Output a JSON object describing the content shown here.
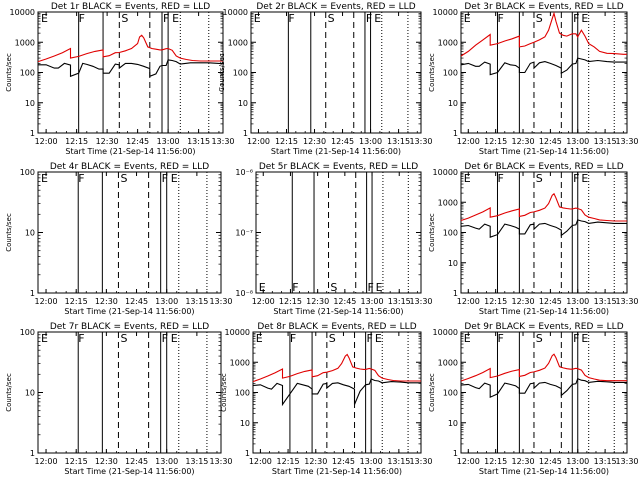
{
  "figure": {
    "background": "#ffffff",
    "events_color": "#000000",
    "lld_color": "#e00000"
  },
  "chart_data": [
    {
      "type": "line",
      "title": "Det 1r BLACK = Events, RED = LLD",
      "xlabel": "Start Time (21-Sep-14 11:56:00)",
      "ylabel": "Counts/sec",
      "x_ticks": [
        "12:00",
        "12:15",
        "12:30",
        "12:45",
        "13:00",
        "13:15",
        "13:30"
      ],
      "y_scale": "log",
      "ylim": [
        1,
        10000
      ],
      "y_ticks": [
        "1",
        "10",
        "100",
        "1000",
        "10000"
      ],
      "markers": [
        "E",
        "F",
        "S",
        "F",
        "E"
      ],
      "has_data": true,
      "series": [
        {
          "role": "events",
          "x": [
            0,
            4,
            8,
            10,
            13,
            16,
            16,
            20,
            22,
            24,
            27,
            30,
            32,
            32,
            35,
            38,
            40,
            40,
            43,
            46,
            49,
            52,
            55,
            55,
            58,
            60,
            61,
            63,
            64,
            66,
            68,
            70,
            75,
            80,
            84,
            89,
            91
          ],
          "y": [
            180,
            180,
            140,
            140,
            200,
            175,
            75,
            95,
            200,
            185,
            160,
            130,
            130,
            95,
            95,
            190,
            180,
            140,
            200,
            200,
            185,
            160,
            135,
            75,
            90,
            160,
            170,
            170,
            260,
            250,
            230,
            190,
            210,
            210,
            210,
            200,
            200
          ]
        },
        {
          "role": "lld",
          "x": [
            0,
            4,
            8,
            12,
            16,
            16,
            20,
            24,
            28,
            32,
            32,
            35,
            38,
            40,
            43,
            46,
            49,
            50,
            51,
            52,
            54,
            56,
            58,
            60,
            61,
            63,
            64,
            66,
            68,
            70,
            73,
            76,
            80,
            84,
            89,
            91
          ],
          "y": [
            230,
            280,
            350,
            450,
            620,
            300,
            340,
            420,
            500,
            560,
            330,
            360,
            450,
            460,
            520,
            620,
            900,
            1500,
            1700,
            1400,
            700,
            620,
            590,
            560,
            560,
            610,
            620,
            540,
            350,
            300,
            270,
            250,
            240,
            240,
            240,
            240
          ]
        }
      ]
    },
    {
      "type": "line",
      "title": "Det 2r BLACK = Events, RED = LLD",
      "xlabel": "Start Time (21-Sep-14 11:56:00)",
      "ylabel": "Counts/sec",
      "x_ticks": [
        "12:00",
        "12:15",
        "12:30",
        "12:45",
        "13:00",
        "13:15",
        "13:30"
      ],
      "y_scale": "log",
      "ylim": [
        1,
        10000
      ],
      "y_ticks": [
        "1",
        "10",
        "100",
        "1000",
        "10000"
      ],
      "markers": [
        "E",
        "F",
        "S",
        "F",
        "E"
      ],
      "has_data": false,
      "series": []
    },
    {
      "type": "line",
      "title": "Det 3r BLACK = Events, RED = LLD",
      "xlabel": "Start Time (21-Sep-14 11:56:00)",
      "ylabel": "Counts/sec",
      "x_ticks": [
        "12:00",
        "12:15",
        "12:30",
        "12:45",
        "13:00",
        "13:15",
        "13:30"
      ],
      "y_scale": "log",
      "ylim": [
        1,
        10000
      ],
      "y_ticks": [
        "1",
        "10",
        "100",
        "1000",
        "10000"
      ],
      "markers": [
        "E",
        "F",
        "S",
        "F",
        "E"
      ],
      "has_data": true,
      "series": [
        {
          "role": "events",
          "x": [
            0,
            4,
            8,
            10,
            13,
            16,
            16,
            20,
            24,
            27,
            30,
            32,
            32,
            35,
            38,
            40,
            40,
            43,
            46,
            49,
            52,
            55,
            55,
            58,
            61,
            63,
            64,
            66,
            68,
            70,
            75,
            80,
            84,
            89,
            91
          ],
          "y": [
            180,
            200,
            160,
            160,
            220,
            190,
            85,
            100,
            210,
            180,
            170,
            140,
            100,
            100,
            200,
            220,
            140,
            210,
            230,
            200,
            170,
            140,
            95,
            120,
            190,
            200,
            300,
            280,
            260,
            230,
            250,
            230,
            220,
            220,
            220
          ]
        },
        {
          "role": "lld",
          "x": [
            0,
            4,
            8,
            12,
            16,
            16,
            20,
            24,
            28,
            32,
            32,
            35,
            38,
            40,
            43,
            46,
            48,
            50,
            51,
            52,
            54,
            56,
            58,
            60,
            61,
            63,
            64,
            66,
            68,
            70,
            73,
            76,
            80,
            84,
            89,
            91
          ],
          "y": [
            350,
            500,
            800,
            1200,
            1800,
            800,
            900,
            1100,
            1300,
            1600,
            700,
            750,
            900,
            1000,
            1200,
            1500,
            2500,
            6000,
            9000,
            5000,
            2000,
            1700,
            1600,
            1800,
            1900,
            1900,
            1500,
            2500,
            1600,
            900,
            700,
            500,
            430,
            420,
            400,
            400
          ]
        }
      ]
    },
    {
      "type": "line",
      "title": "Det 4r BLACK = Events, RED = LLD",
      "xlabel": "Start Time (21-Sep-14 11:56:00)",
      "ylabel": "Counts/sec",
      "x_ticks": [
        "12:00",
        "12:15",
        "12:30",
        "12:45",
        "13:00",
        "13:15",
        "13:30"
      ],
      "y_scale": "log",
      "ylim": [
        1,
        100
      ],
      "y_ticks": [
        "1",
        "10",
        "100"
      ],
      "markers": [
        "E",
        "F",
        "S",
        "F",
        "E"
      ],
      "has_data": false,
      "series": []
    },
    {
      "type": "line",
      "title": "Det 5r BLACK = Events, RED = LLD",
      "xlabel": "Start Time (21-Sep-14 11:56:00)",
      "ylabel": "",
      "x_ticks": [
        "12:00",
        "12:15",
        "12:30",
        "12:45",
        "13:00",
        "13:15",
        "13:30"
      ],
      "y_scale": "log",
      "ylim": [
        1e-08,
        1e-06
      ],
      "y_ticks": [
        "10⁻⁸",
        "10⁻⁷",
        "10⁻⁶"
      ],
      "y_ticks_minor": [
        "10⁻⁸",
        "10⁻⁷",
        "10⁻⁶"
      ],
      "markers": [
        "E",
        "F",
        "S",
        "F",
        "E"
      ],
      "has_data": false,
      "series": []
    },
    {
      "type": "line",
      "title": "Det 6r BLACK = Events, RED = LLD",
      "xlabel": "Start Time (21-Sep-14 11:56:00)",
      "ylabel": "Counts/sec",
      "x_ticks": [
        "12:00",
        "12:15",
        "12:30",
        "12:45",
        "13:00",
        "13:15",
        "13:30"
      ],
      "y_scale": "log",
      "ylim": [
        1,
        10000
      ],
      "y_ticks": [
        "1",
        "10",
        "100",
        "1000",
        "10000"
      ],
      "markers": [
        "E",
        "F",
        "S",
        "F",
        "E"
      ],
      "has_data": true,
      "series": [
        {
          "role": "events",
          "x": [
            0,
            4,
            8,
            10,
            13,
            16,
            16,
            20,
            24,
            27,
            30,
            32,
            32,
            35,
            38,
            40,
            40,
            43,
            46,
            49,
            52,
            55,
            55,
            58,
            61,
            63,
            64,
            66,
            68,
            70,
            75,
            80,
            84,
            89,
            91
          ],
          "y": [
            160,
            170,
            140,
            130,
            190,
            160,
            70,
            85,
            190,
            170,
            150,
            130,
            90,
            90,
            180,
            190,
            130,
            190,
            200,
            170,
            150,
            120,
            80,
            110,
            170,
            180,
            260,
            240,
            230,
            200,
            220,
            210,
            200,
            200,
            200
          ]
        },
        {
          "role": "lld",
          "x": [
            0,
            4,
            8,
            12,
            16,
            16,
            20,
            24,
            28,
            32,
            32,
            35,
            38,
            40,
            43,
            46,
            48,
            50,
            51,
            52,
            54,
            56,
            58,
            60,
            61,
            63,
            64,
            66,
            68,
            70,
            73,
            76,
            80,
            84,
            89,
            91
          ],
          "y": [
            250,
            300,
            380,
            480,
            650,
            320,
            360,
            440,
            520,
            600,
            340,
            370,
            460,
            480,
            540,
            640,
            900,
            1700,
            1900,
            1400,
            700,
            650,
            620,
            600,
            600,
            640,
            620,
            560,
            380,
            320,
            290,
            260,
            250,
            240,
            240,
            240
          ]
        }
      ]
    },
    {
      "type": "line",
      "title": "Det 7r BLACK = Events, RED = LLD",
      "xlabel": "Start Time (21-Sep-14 11:56:00)",
      "ylabel": "Counts/sec",
      "x_ticks": [
        "12:00",
        "12:15",
        "12:30",
        "12:45",
        "13:00",
        "13:15",
        "13:30"
      ],
      "y_scale": "log",
      "ylim": [
        1,
        100
      ],
      "y_ticks": [
        "1",
        "10",
        "100"
      ],
      "markers": [
        "E",
        "F",
        "S",
        "F",
        "E"
      ],
      "has_data": false,
      "series": []
    },
    {
      "type": "line",
      "title": "Det 8r BLACK = Events, RED = LLD",
      "xlabel": "Start Time (21-Sep-14 11:56:00)",
      "ylabel": "Counts/sec",
      "x_ticks": [
        "12:00",
        "12:15",
        "12:30",
        "12:45",
        "13:00",
        "13:15",
        "13:30"
      ],
      "y_scale": "log",
      "ylim": [
        1,
        10000
      ],
      "y_ticks": [
        "1",
        "10",
        "100",
        "1000",
        "10000"
      ],
      "markers": [
        "E",
        "F",
        "S",
        "F",
        "E"
      ],
      "has_data": true,
      "series": [
        {
          "role": "events",
          "x": [
            0,
            4,
            8,
            10,
            13,
            16,
            16,
            20,
            24,
            27,
            30,
            32,
            32,
            35,
            38,
            40,
            40,
            43,
            46,
            49,
            52,
            55,
            55,
            58,
            61,
            63,
            64,
            66,
            68,
            70,
            75,
            80,
            84,
            89,
            91
          ],
          "y": [
            170,
            180,
            140,
            130,
            200,
            170,
            40,
            90,
            200,
            180,
            160,
            130,
            90,
            90,
            190,
            200,
            140,
            200,
            210,
            180,
            160,
            130,
            40,
            110,
            180,
            190,
            280,
            250,
            240,
            210,
            230,
            220,
            210,
            210,
            210
          ]
        },
        {
          "role": "lld",
          "x": [
            0,
            4,
            8,
            12,
            16,
            16,
            20,
            24,
            28,
            32,
            32,
            35,
            38,
            40,
            43,
            46,
            48,
            50,
            51,
            52,
            54,
            56,
            58,
            60,
            61,
            63,
            64,
            66,
            68,
            70,
            73,
            76,
            80,
            84,
            89,
            91
          ],
          "y": [
            230,
            280,
            350,
            450,
            600,
            300,
            340,
            420,
            500,
            560,
            330,
            360,
            450,
            470,
            530,
            630,
            900,
            1600,
            1800,
            1400,
            700,
            640,
            600,
            580,
            580,
            620,
            600,
            540,
            360,
            300,
            270,
            250,
            240,
            240,
            240,
            240
          ]
        }
      ]
    },
    {
      "type": "line",
      "title": "Det 9r BLACK = Events, RED = LLD",
      "xlabel": "Start Time (21-Sep-14 11:56:00)",
      "ylabel": "Counts/sec",
      "x_ticks": [
        "12:00",
        "12:15",
        "12:30",
        "12:45",
        "13:00",
        "13:15",
        "13:30"
      ],
      "y_scale": "log",
      "ylim": [
        1,
        10000
      ],
      "y_ticks": [
        "1",
        "10",
        "100",
        "1000",
        "10000"
      ],
      "markers": [
        "E",
        "F",
        "S",
        "F",
        "E"
      ],
      "has_data": true,
      "series": [
        {
          "role": "events",
          "x": [
            0,
            4,
            8,
            10,
            13,
            16,
            16,
            20,
            24,
            27,
            30,
            32,
            32,
            35,
            38,
            40,
            40,
            43,
            46,
            49,
            52,
            55,
            55,
            58,
            61,
            63,
            64,
            66,
            68,
            70,
            75,
            80,
            84,
            89,
            91
          ],
          "y": [
            175,
            185,
            145,
            135,
            205,
            175,
            70,
            90,
            205,
            185,
            165,
            135,
            95,
            95,
            195,
            205,
            140,
            205,
            215,
            185,
            165,
            135,
            80,
            115,
            185,
            195,
            285,
            255,
            245,
            215,
            235,
            225,
            215,
            215,
            215
          ]
        },
        {
          "role": "lld",
          "x": [
            0,
            4,
            8,
            12,
            16,
            16,
            20,
            24,
            28,
            32,
            32,
            35,
            38,
            40,
            43,
            46,
            48,
            50,
            51,
            52,
            54,
            56,
            58,
            60,
            61,
            63,
            64,
            66,
            68,
            70,
            73,
            76,
            80,
            84,
            89,
            91
          ],
          "y": [
            240,
            290,
            360,
            460,
            620,
            310,
            350,
            430,
            510,
            570,
            340,
            370,
            460,
            480,
            540,
            640,
            920,
            1650,
            1850,
            1420,
            710,
            650,
            610,
            590,
            590,
            630,
            610,
            550,
            370,
            310,
            280,
            255,
            245,
            245,
            245,
            245
          ]
        }
      ]
    }
  ]
}
